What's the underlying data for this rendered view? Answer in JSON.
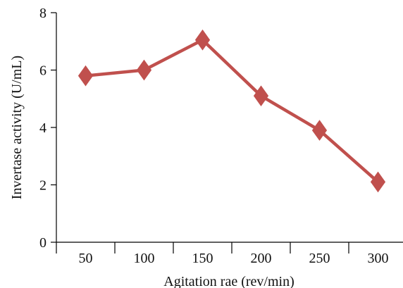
{
  "chart_data": {
    "type": "line",
    "categories": [
      "50",
      "100",
      "150",
      "200",
      "250",
      "300"
    ],
    "series": [
      {
        "values": [
          5.8,
          6.0,
          7.05,
          5.1,
          3.9,
          2.1
        ],
        "color": "#c0504d",
        "marker": "diamond"
      }
    ],
    "xlabel": "Agitation rae (rev/min)",
    "ylabel": "Invertase activity (U/mL)",
    "ylim": [
      0,
      8
    ],
    "yticks": [
      0,
      2,
      4,
      6,
      8
    ],
    "grid": false,
    "legend": "none"
  }
}
